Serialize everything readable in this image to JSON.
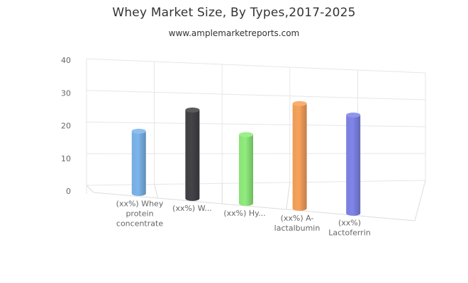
{
  "chart_data": {
    "type": "bar",
    "title": "Whey Market Size, By Types,2017-2025",
    "subtitle": "www.amplemarketreports.com",
    "categories": [
      "(xx%) Whey protein concentrate",
      "(xx%) W...",
      "(xx%) Hy...",
      "(xx%) A-lactalbumin",
      "(xx%) Lactoferrin"
    ],
    "category_label_lines": [
      [
        "(xx%) Whey",
        "protein",
        "concentrate"
      ],
      [
        "(xx%) W..."
      ],
      [
        "(xx%) Hy..."
      ],
      [
        "(xx%) A-",
        "lactalbumin"
      ],
      [
        "(xx%)",
        "Lactoferrin"
      ]
    ],
    "values": [
      19,
      27,
      21,
      32,
      30
    ],
    "colors": [
      "#7cb5ec",
      "#434348",
      "#90ed7d",
      "#f7a35c",
      "#8085e9"
    ],
    "xlabel": "",
    "ylabel": "",
    "ylim": [
      0,
      40
    ],
    "yticks": [
      "0",
      "10",
      "20",
      "30",
      "40"
    ],
    "grid": true,
    "legend": "none",
    "style": "3d-cylinder"
  }
}
